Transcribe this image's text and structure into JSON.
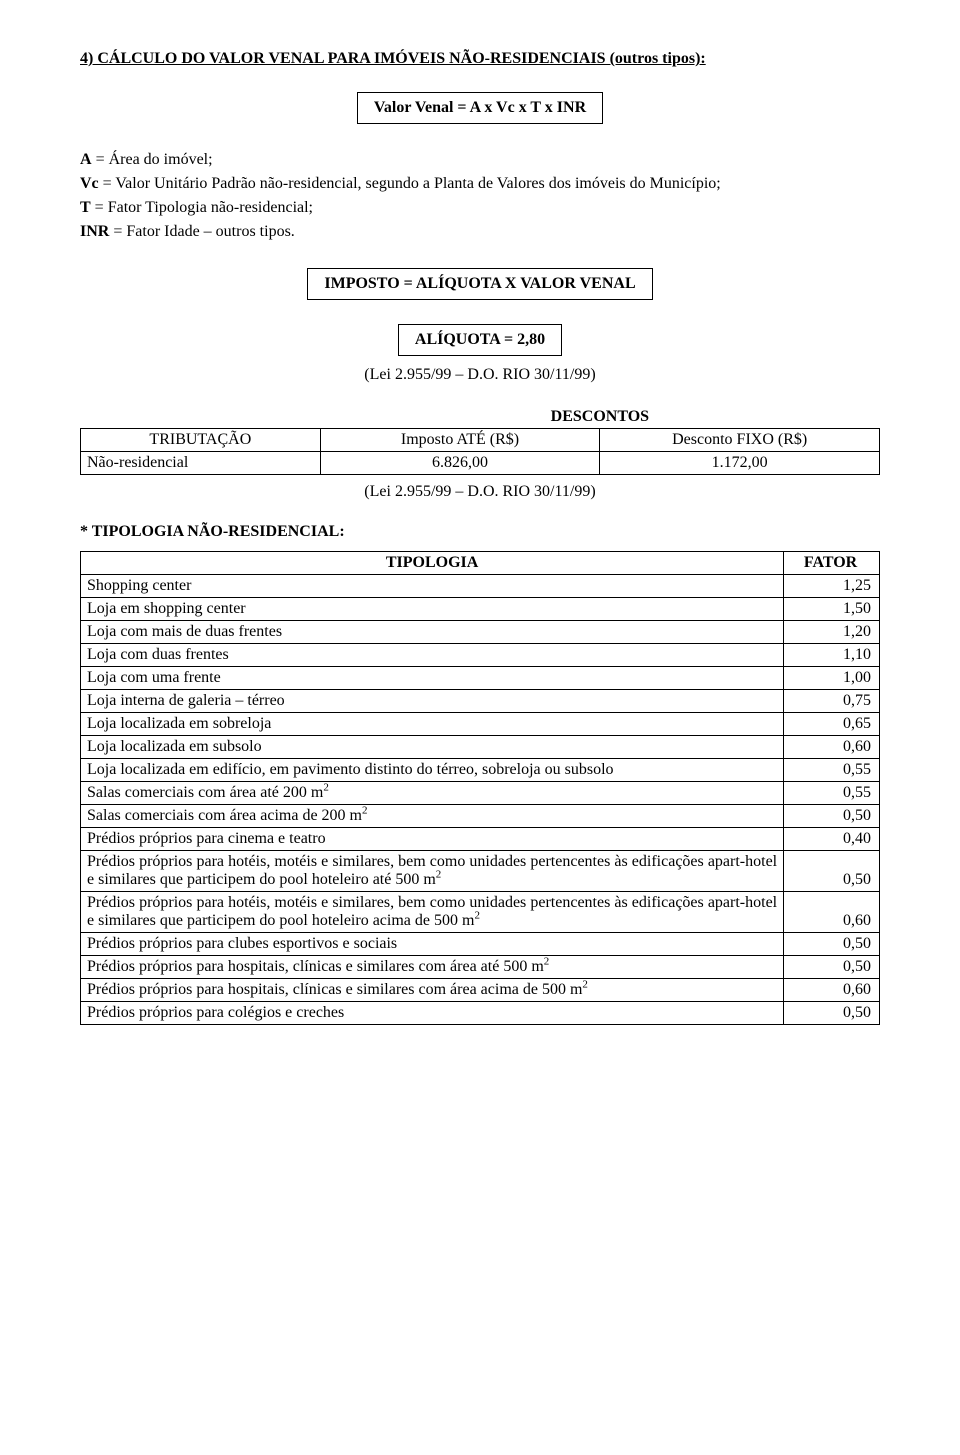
{
  "title": "4) CÁLCULO DO VALOR VENAL PARA IMÓVEIS NÃO-RESIDENCIAIS (outros tipos):",
  "formula1": "Valor Venal = A x  Vc x T x INR",
  "defs": {
    "a_label": "A",
    "a_text": "   = Área do imóvel;",
    "vc_label": "Vc",
    "vc_text": "  = Valor Unitário Padrão não-residencial, segundo a Planta de Valores dos imóveis do Município;",
    "t_label": "T",
    "t_text": "   = Fator Tipologia não-residencial;",
    "inr_label": "INR",
    "inr_text": " = Fator Idade – outros tipos."
  },
  "formula2": "IMPOSTO = ALÍQUOTA X VALOR VENAL",
  "aliquota": {
    "box": "ALÍQUOTA = 2,80",
    "lei": "(Lei 2.955/99 – D.O. RIO 30/11/99)"
  },
  "descontos": {
    "title": "DESCONTOS",
    "headers": [
      "TRIBUTAÇÃO",
      "Imposto ATÉ (R$)",
      "Desconto FIXO (R$)"
    ],
    "row": [
      "Não-residencial",
      "6.826,00",
      "1.172,00"
    ],
    "lei": "(Lei 2.955/99 – D.O. RIO 30/11/99)"
  },
  "tipologia_section": "* TIPOLOGIA NÃO-RESIDENCIAL:",
  "tipologia_headers": [
    "TIPOLOGIA",
    "FATOR"
  ],
  "tipologia_rows": [
    {
      "label": "Shopping center",
      "fator": "1,25"
    },
    {
      "label": "Loja em shopping center",
      "fator": "1,50"
    },
    {
      "label": "Loja com mais de duas frentes",
      "fator": "1,20"
    },
    {
      "label": "Loja com duas frentes",
      "fator": "1,10"
    },
    {
      "label": "Loja com uma frente",
      "fator": "1,00"
    },
    {
      "label": "Loja interna de galeria – térreo",
      "fator": "0,75"
    },
    {
      "label": "Loja localizada em sobreloja",
      "fator": "0,65"
    },
    {
      "label": "Loja localizada em subsolo",
      "fator": "0,60"
    },
    {
      "label": "Loja localizada em edifício, em pavimento distinto do térreo, sobreloja ou subsolo",
      "fator": "0,55"
    },
    {
      "label": "Salas comerciais com área até 200 m",
      "sup": "2",
      "fator": "0,55"
    },
    {
      "label": "Salas comerciais com área acima de 200 m",
      "sup": "2",
      "fator": "0,50"
    },
    {
      "label": "Prédios próprios para cinema e teatro",
      "fator": "0,40"
    },
    {
      "label": "Prédios próprios para hotéis, motéis e similares, bem como unidades pertencentes às edificações apart-hotel e similares que participem do pool hoteleiro até 500 m",
      "sup": "2",
      "fator": "0,50"
    },
    {
      "label": "Prédios próprios para hotéis, motéis e similares, bem como unidades pertencentes às edificações apart-hotel e similares que participem do pool hoteleiro acima de 500 m",
      "sup": "2",
      "fator": "0,60"
    },
    {
      "label": "Prédios próprios para clubes esportivos e sociais",
      "fator": "0,50"
    },
    {
      "label": "Prédios próprios para hospitais, clínicas e similares com área até 500 m",
      "sup": "2",
      "fator": "0,50"
    },
    {
      "label": "Prédios próprios para hospitais, clínicas e similares com área acima de 500 m",
      "sup": "2",
      "fator": "0,60"
    },
    {
      "label": "Prédios próprios para colégios e creches",
      "fator": "0,50"
    }
  ]
}
